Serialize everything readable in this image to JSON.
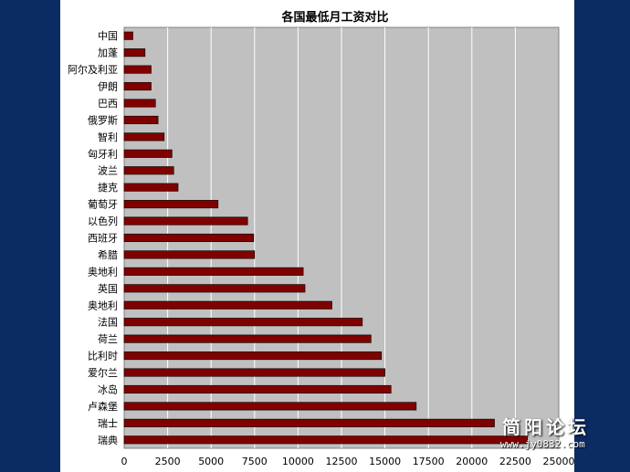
{
  "colors": {
    "background": "#0b2b63",
    "plot_area": "#c0c0c0",
    "bar": "#800000",
    "gridline": "#ffffff"
  },
  "watermark": {
    "name": "简阳论坛",
    "url": "www.jy0832.com"
  },
  "chart_data": {
    "type": "bar",
    "orientation": "horizontal",
    "title": "各国最低月工资对比",
    "xlabel": "",
    "ylabel": "",
    "xlim": [
      0,
      25000
    ],
    "x_ticks": [
      0,
      2500,
      5000,
      7500,
      10000,
      12500,
      15000,
      17500,
      20000,
      22500,
      25000
    ],
    "grid": "vertical",
    "legend": "none",
    "categories": [
      "中国",
      "加蓬",
      "阿尔及利亚",
      "伊朗",
      "巴西",
      "俄罗斯",
      "智利",
      "匈牙利",
      "波兰",
      "捷克",
      "葡萄牙",
      "以色列",
      "西班牙",
      "希腊",
      "奥地利",
      "英国",
      "奥地利",
      "法国",
      "荷兰",
      "比利时",
      "爱尔兰",
      "冰岛",
      "卢森堡",
      "瑞士",
      "瑞典"
    ],
    "values": [
      500,
      1200,
      1550,
      1550,
      1800,
      1950,
      2300,
      2750,
      2850,
      3100,
      5400,
      7100,
      7450,
      7500,
      10300,
      10400,
      11950,
      13700,
      14200,
      14800,
      15000,
      15350,
      16800,
      21300,
      23200
    ]
  }
}
